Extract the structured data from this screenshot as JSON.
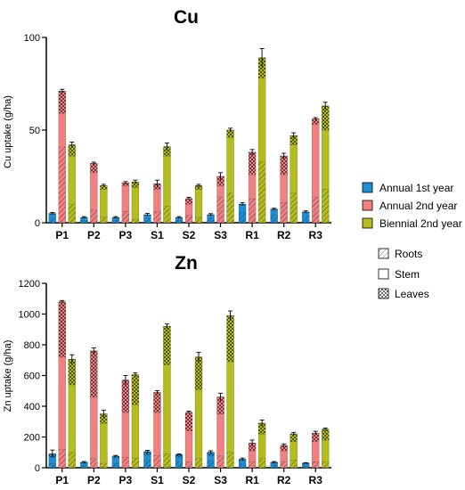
{
  "chart_data": [
    {
      "type": "bar",
      "stacked": true,
      "title": "Cu",
      "ylabel": "Cu uptake (g/ha)",
      "ylim": [
        0,
        100
      ],
      "yticks": [
        0,
        50,
        100
      ],
      "categories": [
        "P1",
        "P2",
        "P3",
        "S1",
        "S2",
        "S3",
        "R1",
        "R2",
        "R3"
      ],
      "series": [
        {
          "name": "Annual 1st year",
          "color": "#1d8fd6",
          "roots": [
            2.5,
            1.5,
            1.5,
            2.5,
            1.5,
            2.5,
            5.5,
            4.0,
            3.5
          ],
          "stem": [
            2.0,
            1.0,
            1.0,
            1.5,
            1.0,
            1.5,
            4.0,
            3.0,
            2.0
          ],
          "leaves": [
            0.5,
            0.3,
            0.3,
            0.3,
            0.3,
            0.3,
            0.5,
            0.3,
            0.3
          ],
          "error": [
            0.5,
            0.5,
            0.5,
            0.7,
            0.5,
            0.6,
            0.8,
            0.5,
            0.6
          ]
        },
        {
          "name": "Annual 2nd year",
          "color": "#f28080",
          "roots": [
            41,
            7,
            6,
            6,
            4,
            14,
            13,
            11,
            14
          ],
          "stem": [
            18,
            20,
            14,
            12,
            6,
            6,
            13,
            15,
            39
          ],
          "leaves": [
            12,
            5,
            1.5,
            3,
            3,
            5,
            12,
            10,
            3
          ],
          "error": [
            1.0,
            0.7,
            0.7,
            2.0,
            0.7,
            2.0,
            1.5,
            1.5,
            0.7
          ]
        },
        {
          "name": "Biennial 2nd year",
          "color": "#b5bd1c",
          "roots": [
            10,
            3,
            2,
            9,
            3,
            16,
            33,
            16,
            18
          ],
          "stem": [
            26,
            15,
            17,
            27,
            15,
            30,
            45,
            26,
            32
          ],
          "leaves": [
            6,
            2,
            3,
            5,
            2,
            4,
            11,
            5,
            13
          ],
          "error": [
            1.5,
            0.7,
            1.0,
            2.0,
            0.7,
            1.0,
            5.0,
            1.5,
            2.0
          ]
        }
      ],
      "legend": [
        "Annual 1st year",
        "Annual 2nd year",
        "Biennial 2nd year"
      ],
      "legend_position": "right"
    },
    {
      "type": "bar",
      "stacked": true,
      "title": "Zn",
      "ylabel": "Zn uptake (g/ha)",
      "ylim": [
        0,
        1200
      ],
      "yticks": [
        0,
        200,
        400,
        600,
        800,
        1000,
        1200
      ],
      "categories": [
        "P1",
        "P2",
        "P3",
        "S1",
        "S2",
        "S3",
        "R1",
        "R2",
        "R3"
      ],
      "series": [
        {
          "name": "Annual 1st year",
          "color": "#1d8fd6",
          "roots": [
            30,
            15,
            30,
            50,
            40,
            45,
            25,
            18,
            12
          ],
          "stem": [
            40,
            15,
            35,
            35,
            30,
            35,
            20,
            12,
            12
          ],
          "leaves": [
            20,
            5,
            10,
            20,
            15,
            20,
            10,
            5,
            6
          ],
          "error": [
            25,
            5,
            5,
            8,
            5,
            10,
            8,
            5,
            3
          ]
        },
        {
          "name": "Annual 2nd year",
          "color": "#f28080",
          "roots": [
            120,
            60,
            70,
            80,
            40,
            80,
            40,
            40,
            40
          ],
          "stem": [
            600,
            400,
            290,
            280,
            200,
            270,
            70,
            70,
            130
          ],
          "leaves": [
            360,
            300,
            210,
            130,
            120,
            110,
            50,
            35,
            55
          ],
          "error": [
            8,
            20,
            30,
            12,
            8,
            25,
            20,
            10,
            12
          ]
        },
        {
          "name": "Biennial 2nd year",
          "color": "#b5bd1c",
          "roots": [
            100,
            30,
            60,
            90,
            60,
            100,
            60,
            50,
            40
          ],
          "stem": [
            440,
            260,
            350,
            580,
            450,
            590,
            160,
            120,
            140
          ],
          "leaves": [
            165,
            60,
            195,
            250,
            210,
            300,
            70,
            50,
            70
          ],
          "error": [
            30,
            25,
            12,
            15,
            30,
            30,
            20,
            10,
            8
          ]
        }
      ],
      "legend": [
        "Roots",
        "Stem",
        "Leaves"
      ],
      "legend_position": "right"
    }
  ]
}
